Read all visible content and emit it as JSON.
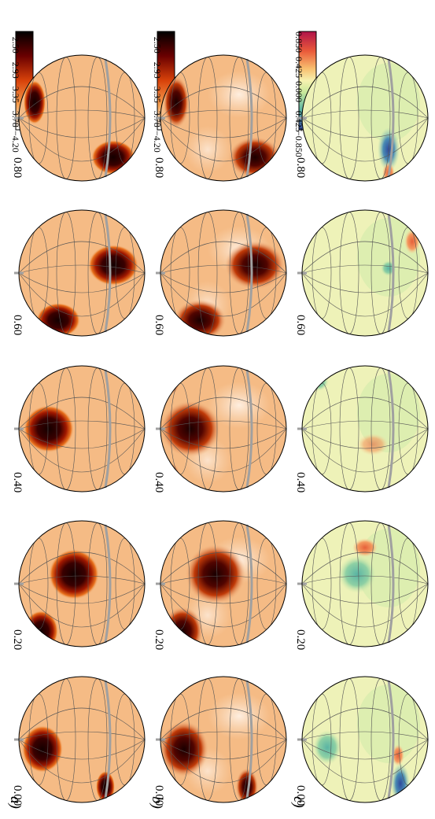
{
  "figure": {
    "rows": [
      {
        "label": "a)",
        "colorbar": {
          "ticks": [
            "−2.50",
            "−2.93",
            "−3.35",
            "−3.78",
            "−4.20"
          ],
          "colormap": "black-red-orange-white"
        }
      },
      {
        "label": "b)",
        "colorbar": {
          "ticks": [
            "−2.50",
            "−2.93",
            "−3.35",
            "−3.78",
            "−4.20"
          ],
          "colormap": "black-red-orange-white"
        }
      },
      {
        "label": "c)",
        "colorbar": {
          "ticks": [
            "0.850",
            "0.425",
            "0.000",
            "−0.425",
            "−0.850"
          ],
          "colormap": "spectral"
        }
      }
    ],
    "phases": [
      "0.00",
      "0.20",
      "0.40",
      "0.60",
      "0.80"
    ],
    "colors": {
      "background_sphere": "#f5bb85",
      "spot_core": "#200000",
      "equator": "#a0a0a0",
      "grid": "#555555"
    }
  }
}
